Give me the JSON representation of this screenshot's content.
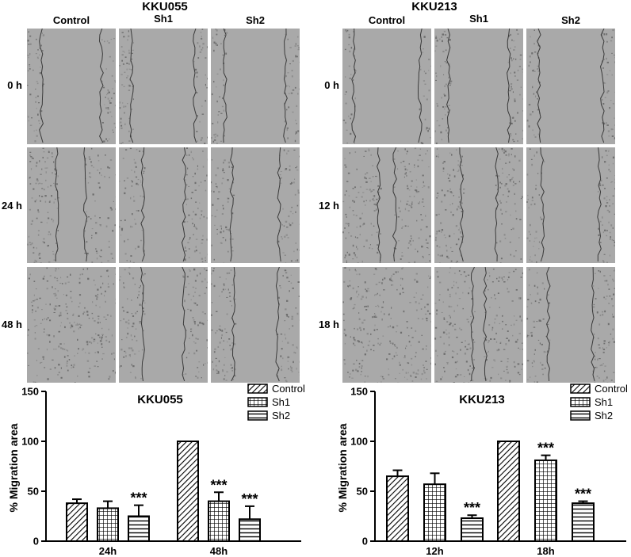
{
  "figure": {
    "left_panel": {
      "title": "KKU055",
      "columns": [
        "Control",
        "Sh1",
        "Sh2"
      ],
      "rows": [
        "0 h",
        "24 h",
        "48 h"
      ]
    },
    "right_panel": {
      "title": "KKU213",
      "columns": [
        "Control",
        "Sh1",
        "Sh2"
      ],
      "rows": [
        "0 h",
        "12 h",
        "18 h"
      ]
    }
  },
  "colors": {
    "image_bg": "#a9a9a9",
    "axis": "#000000",
    "bar_fill": "#ffffff"
  },
  "chart_data": [
    {
      "type": "bar",
      "title": "KKU055",
      "ylabel": "% Migration area",
      "xlabel": "",
      "ylim": [
        0,
        150
      ],
      "yticks": [
        0,
        50,
        100,
        150
      ],
      "categories": [
        "24h",
        "48h"
      ],
      "legend": "top-right",
      "series": [
        {
          "name": "Control",
          "pattern": "diagonal",
          "values": [
            38,
            100
          ],
          "errors": [
            4,
            0
          ],
          "significance": [
            "",
            ""
          ]
        },
        {
          "name": "Sh1",
          "pattern": "grid",
          "values": [
            33,
            40
          ],
          "errors": [
            7,
            9
          ],
          "significance": [
            "",
            "***"
          ]
        },
        {
          "name": "Sh2",
          "pattern": "horizontal",
          "values": [
            25,
            22
          ],
          "errors": [
            11,
            13
          ],
          "significance": [
            "***",
            "***"
          ]
        }
      ]
    },
    {
      "type": "bar",
      "title": "KKU213",
      "ylabel": "% Migration area",
      "xlabel": "",
      "ylim": [
        0,
        150
      ],
      "yticks": [
        0,
        50,
        100,
        150
      ],
      "categories": [
        "12h",
        "18h"
      ],
      "legend": "top-right",
      "series": [
        {
          "name": "Control",
          "pattern": "diagonal",
          "values": [
            65,
            100
          ],
          "errors": [
            6,
            0
          ],
          "significance": [
            "",
            ""
          ]
        },
        {
          "name": "Sh1",
          "pattern": "grid",
          "values": [
            57,
            81
          ],
          "errors": [
            11,
            5
          ],
          "significance": [
            "",
            "***"
          ]
        },
        {
          "name": "Sh2",
          "pattern": "horizontal",
          "values": [
            23,
            38
          ],
          "errors": [
            3,
            2
          ],
          "significance": [
            "***",
            "***"
          ]
        }
      ]
    }
  ]
}
